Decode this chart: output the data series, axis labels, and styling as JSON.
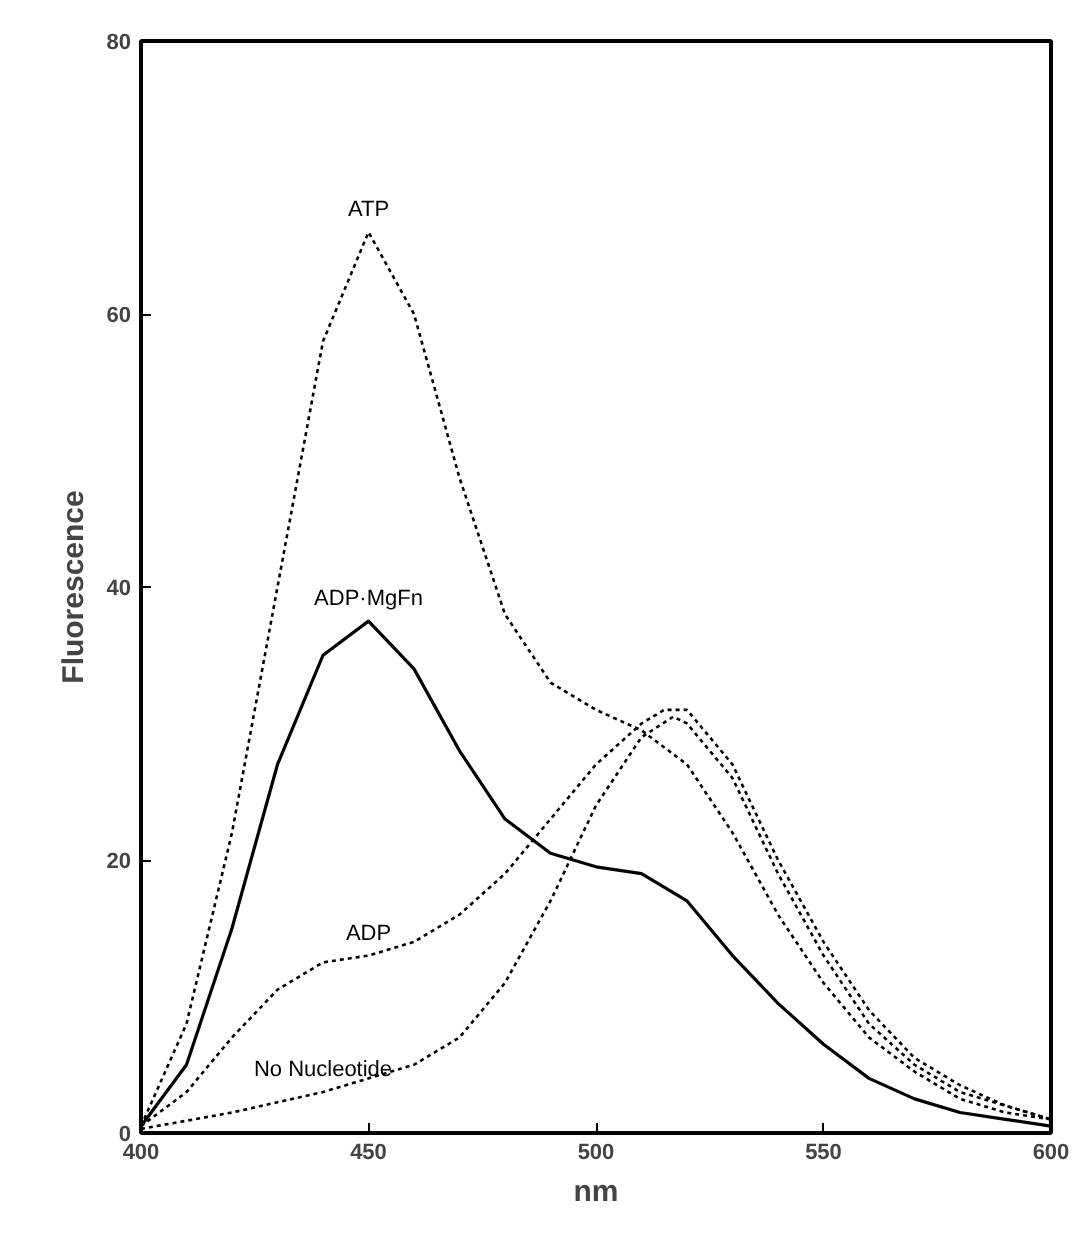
{
  "chart_data": {
    "type": "line",
    "xlabel": "nm",
    "ylabel": "Fluorescence",
    "xlim": [
      400,
      600
    ],
    "ylim": [
      0,
      80
    ],
    "xticks": [
      400,
      450,
      500,
      550,
      600
    ],
    "yticks": [
      0,
      20,
      40,
      60,
      80
    ],
    "grid": false,
    "marker": "none",
    "series": [
      {
        "name": "ATP",
        "color": "#000000",
        "line_style": "dotted",
        "x": [
          400,
          410,
          420,
          430,
          440,
          450,
          460,
          470,
          480,
          490,
          500,
          510,
          520,
          530,
          540,
          550,
          560,
          570,
          580,
          590,
          600
        ],
        "values": [
          0.5,
          8,
          22,
          40,
          58,
          66,
          60,
          48,
          38,
          33,
          31,
          29.5,
          27,
          22,
          16,
          11,
          7,
          4.5,
          2.5,
          1.5,
          1
        ]
      },
      {
        "name": "ADP·MgFn",
        "color": "#000000",
        "line_style": "solid",
        "x": [
          400,
          410,
          420,
          430,
          440,
          450,
          460,
          470,
          480,
          490,
          500,
          510,
          520,
          530,
          540,
          550,
          560,
          570,
          580,
          590,
          600
        ],
        "values": [
          0.5,
          5,
          15,
          27,
          35,
          37.5,
          34,
          28,
          23,
          20.5,
          19.5,
          19,
          17,
          13,
          9.5,
          6.5,
          4,
          2.5,
          1.5,
          1,
          0.5
        ]
      },
      {
        "name": "ADP",
        "color": "#000000",
        "line_style": "dotted",
        "x": [
          400,
          410,
          420,
          430,
          440,
          450,
          460,
          470,
          480,
          490,
          500,
          510,
          515,
          520,
          530,
          540,
          550,
          560,
          570,
          580,
          590,
          600
        ],
        "values": [
          0.5,
          3,
          7,
          10.5,
          12.5,
          13,
          14,
          16,
          19,
          23,
          27,
          30,
          31,
          31,
          27,
          20,
          14,
          9,
          5.5,
          3.5,
          2,
          1
        ]
      },
      {
        "name": "No Nucleotide",
        "color": "#000000",
        "line_style": "dotted",
        "x": [
          400,
          420,
          440,
          460,
          470,
          480,
          490,
          500,
          510,
          517,
          520,
          530,
          540,
          550,
          560,
          570,
          580,
          590,
          600
        ],
        "values": [
          0.3,
          1.5,
          3,
          5,
          7,
          11,
          17,
          24,
          29,
          30.5,
          30,
          26,
          19,
          13,
          8,
          5,
          3,
          2,
          1
        ]
      }
    ]
  }
}
